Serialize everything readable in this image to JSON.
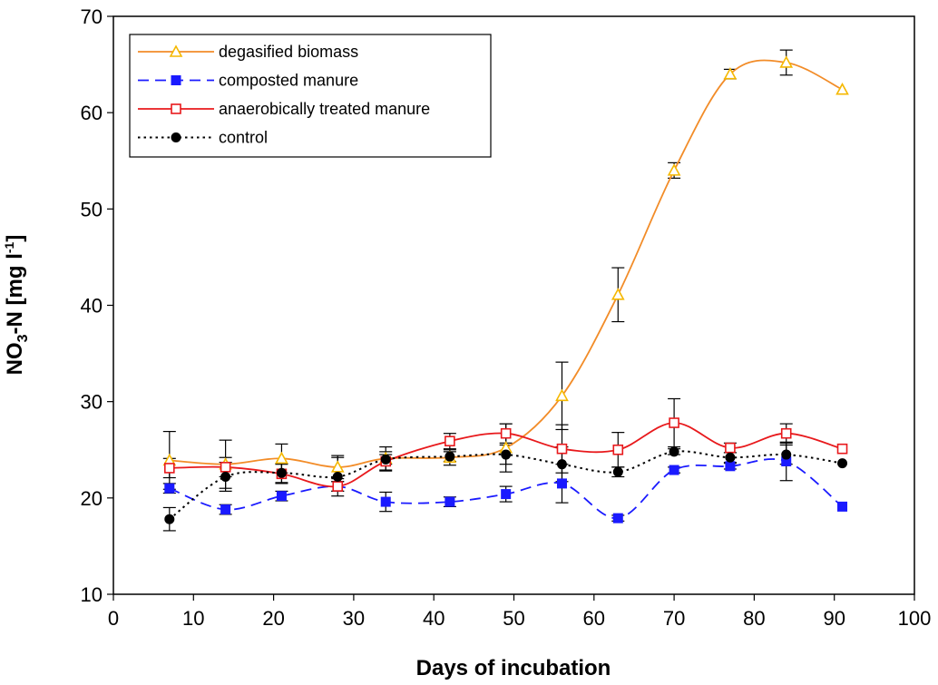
{
  "chart_data": {
    "type": "line",
    "title": "",
    "xlabel": "Days of incubation",
    "ylabel_parts": [
      "NO",
      "3",
      "-N [mg l",
      "-1",
      "]"
    ],
    "xlim": [
      0,
      100
    ],
    "ylim": [
      10,
      70
    ],
    "x_ticks": [
      "0",
      "10",
      "20",
      "30",
      "40",
      "50",
      "60",
      "70",
      "80",
      "90",
      "100"
    ],
    "y_ticks": [
      "10",
      "20",
      "30",
      "40",
      "50",
      "60",
      "70"
    ],
    "grid": false,
    "legend_position": "top-left",
    "series": [
      {
        "name": "degasified biomass",
        "color": "#f28c28",
        "marker_color": "#f5b800",
        "marker": "triangle-open",
        "line_style": "solid",
        "x": [
          7,
          14,
          21,
          28,
          34,
          42,
          49,
          56,
          63,
          70,
          77,
          84,
          91
        ],
        "y": [
          23.9,
          23.5,
          24.1,
          23.2,
          24.1,
          24.2,
          25.2,
          30.6,
          41.1,
          54.0,
          64.0,
          65.2,
          62.4
        ],
        "err": [
          3.0,
          2.5,
          1.5,
          1.2,
          1.2,
          0.8,
          2.5,
          3.5,
          2.8,
          0.8,
          0.5,
          1.3,
          0
        ]
      },
      {
        "name": "composted manure",
        "color": "#1a1aff",
        "marker_color": "#1a1aff",
        "marker": "square-filled",
        "line_style": "dashed",
        "x": [
          7,
          14,
          21,
          28,
          34,
          42,
          49,
          56,
          63,
          70,
          77,
          84,
          91
        ],
        "y": [
          21.0,
          18.8,
          20.2,
          21.2,
          19.6,
          19.6,
          20.4,
          21.5,
          17.9,
          22.9,
          23.3,
          23.8,
          19.1
        ],
        "err": [
          0.5,
          0.5,
          0.5,
          0.5,
          1.0,
          0.5,
          0.8,
          2.0,
          0.3,
          0.3,
          0.3,
          2.0,
          0
        ]
      },
      {
        "name": "anaerobically treated manure",
        "color": "#e8191c",
        "marker_color": "#e8191c",
        "marker": "square-open",
        "line_style": "solid",
        "x": [
          7,
          14,
          21,
          28,
          34,
          42,
          49,
          56,
          63,
          70,
          77,
          84,
          91
        ],
        "y": [
          23.1,
          23.2,
          22.5,
          21.2,
          23.8,
          25.9,
          26.7,
          25.1,
          25.0,
          27.8,
          25.2,
          26.7,
          25.1
        ],
        "err": [
          1.0,
          1.0,
          1.0,
          0.5,
          1.0,
          0.8,
          1.0,
          2.5,
          1.8,
          2.5,
          0.5,
          1.0,
          0
        ]
      },
      {
        "name": "control",
        "color": "#000000",
        "marker_color": "#000000",
        "marker": "circle-filled",
        "line_style": "dotted",
        "x": [
          7,
          14,
          21,
          28,
          34,
          42,
          49,
          56,
          63,
          70,
          77,
          84,
          91
        ],
        "y": [
          17.8,
          22.2,
          22.6,
          22.2,
          24.0,
          24.3,
          24.5,
          23.5,
          22.7,
          24.8,
          24.2,
          24.5,
          23.6
        ],
        "err": [
          1.2,
          1.5,
          1.0,
          2.0,
          0.5,
          0.5,
          1.0,
          1.8,
          0.5,
          0.3,
          0.5,
          1.0,
          0
        ]
      }
    ]
  }
}
